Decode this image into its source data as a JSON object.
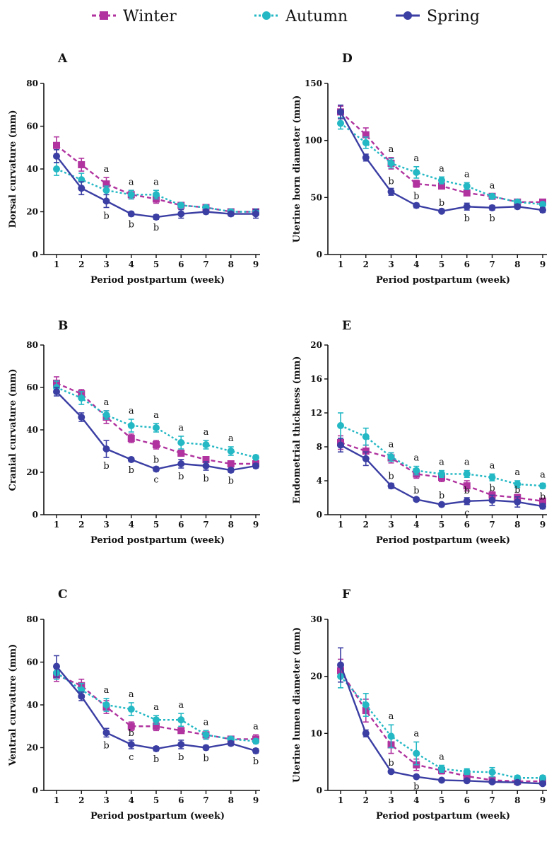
{
  "legend": [
    {
      "name": "Winter",
      "color": "#b0339f",
      "dash": "6,4",
      "marker": "square"
    },
    {
      "name": "Autumn",
      "color": "#23b8c4",
      "dash": "3,3",
      "marker": "circle"
    },
    {
      "name": "Spring",
      "color": "#3b3ea3",
      "dash": "",
      "marker": "circle"
    }
  ],
  "chart_data": [
    {
      "type": "line",
      "panel": "A",
      "xlabel": "Period postpartum (week)",
      "ylabel": "Dorsal curvature (mm)",
      "ylim": [
        0,
        80
      ],
      "yticks": [
        0,
        20,
        40,
        60,
        80
      ],
      "x": [
        1,
        2,
        3,
        4,
        5,
        6,
        7,
        8,
        9
      ],
      "series": [
        {
          "name": "Winter",
          "values": [
            51,
            42,
            33,
            28,
            26,
            23,
            22,
            20,
            20
          ],
          "errors": [
            4,
            3,
            3,
            2,
            2,
            1,
            1,
            1,
            1
          ]
        },
        {
          "name": "Autumn",
          "values": [
            40,
            35,
            30,
            28,
            28,
            23,
            22,
            20,
            20
          ],
          "errors": [
            3,
            3,
            2,
            2,
            2,
            1,
            1,
            1,
            1
          ]
        },
        {
          "name": "Spring",
          "values": [
            46,
            31,
            25,
            19,
            17.5,
            19,
            20,
            19,
            19
          ],
          "errors": [
            3,
            3,
            3,
            1,
            1,
            2,
            1,
            1,
            2
          ]
        }
      ],
      "annotations": [
        {
          "x": 3,
          "text": "a",
          "pos": "above"
        },
        {
          "x": 4,
          "text": "a",
          "pos": "above"
        },
        {
          "x": 5,
          "text": "a",
          "pos": "above"
        },
        {
          "x": 3,
          "text": "b",
          "pos": "below"
        },
        {
          "x": 4,
          "text": "b",
          "pos": "below"
        },
        {
          "x": 5,
          "text": "b",
          "pos": "below"
        }
      ]
    },
    {
      "type": "line",
      "panel": "B",
      "xlabel": "Period postpartum (week)",
      "ylabel": "Cranial curvature (mm)",
      "ylim": [
        0,
        80
      ],
      "yticks": [
        0,
        20,
        40,
        60,
        80
      ],
      "x": [
        1,
        2,
        3,
        4,
        5,
        6,
        7,
        8,
        9
      ],
      "series": [
        {
          "name": "Winter",
          "values": [
            62,
            57,
            46,
            36,
            33,
            29,
            26,
            24,
            24
          ],
          "errors": [
            3,
            2,
            3,
            2,
            2,
            1,
            1,
            1,
            1
          ]
        },
        {
          "name": "Autumn",
          "values": [
            60,
            55,
            47,
            42,
            41,
            34,
            33,
            30,
            27
          ],
          "errors": [
            3,
            3,
            2,
            3,
            2,
            3,
            2,
            2,
            1
          ]
        },
        {
          "name": "Spring",
          "values": [
            58,
            46,
            31,
            26,
            21.5,
            24,
            23,
            21,
            23
          ],
          "errors": [
            2,
            2,
            4,
            1,
            1,
            2,
            2,
            1,
            1
          ]
        }
      ],
      "annotations": [
        {
          "x": 3,
          "text": "a",
          "pos": "above"
        },
        {
          "x": 4,
          "text": "a",
          "pos": "above"
        },
        {
          "x": 5,
          "text": "a",
          "pos": "above"
        },
        {
          "x": 6,
          "text": "a",
          "pos": "above"
        },
        {
          "x": 7,
          "text": "a",
          "pos": "above"
        },
        {
          "x": 8,
          "text": "a",
          "pos": "above"
        },
        {
          "x": 3,
          "text": "b",
          "pos": "below"
        },
        {
          "x": 4,
          "text": "b",
          "pos": "below"
        },
        {
          "x": 5,
          "text": "b",
          "pos": "mid"
        },
        {
          "x": 5,
          "text": "c",
          "pos": "below"
        },
        {
          "x": 6,
          "text": "b",
          "pos": "below"
        },
        {
          "x": 7,
          "text": "b",
          "pos": "below"
        },
        {
          "x": 8,
          "text": "b",
          "pos": "below"
        }
      ]
    },
    {
      "type": "line",
      "panel": "C",
      "xlabel": "Period postpartum (week)",
      "ylabel": "Ventral curvature (mm)",
      "ylim": [
        0,
        80
      ],
      "yticks": [
        0,
        20,
        40,
        60,
        80
      ],
      "x": [
        1,
        2,
        3,
        4,
        5,
        6,
        7,
        8,
        9
      ],
      "series": [
        {
          "name": "Winter",
          "values": [
            54,
            49,
            39,
            30,
            30,
            28,
            26,
            24,
            24
          ],
          "errors": [
            3,
            3,
            3,
            2,
            2,
            1,
            2,
            1,
            2
          ]
        },
        {
          "name": "Autumn",
          "values": [
            55,
            47,
            40,
            38,
            33,
            33,
            26,
            24,
            23
          ],
          "errors": [
            3,
            3,
            3,
            3,
            2,
            3,
            2,
            1,
            1
          ]
        },
        {
          "name": "Spring",
          "values": [
            58,
            44,
            27,
            21.5,
            19.5,
            21.5,
            20,
            22,
            18.5
          ],
          "errors": [
            5,
            2,
            2,
            2,
            1,
            2,
            1,
            1,
            1
          ]
        }
      ],
      "annotations": [
        {
          "x": 3,
          "text": "a",
          "pos": "above"
        },
        {
          "x": 4,
          "text": "a",
          "pos": "above"
        },
        {
          "x": 5,
          "text": "a",
          "pos": "above"
        },
        {
          "x": 6,
          "text": "a",
          "pos": "above"
        },
        {
          "x": 7,
          "text": "a",
          "pos": "above"
        },
        {
          "x": 9,
          "text": "a",
          "pos": "above"
        },
        {
          "x": 3,
          "text": "b",
          "pos": "below"
        },
        {
          "x": 4,
          "text": "b",
          "pos": "mid"
        },
        {
          "x": 4,
          "text": "c",
          "pos": "below"
        },
        {
          "x": 5,
          "text": "b",
          "pos": "below"
        },
        {
          "x": 6,
          "text": "b",
          "pos": "below"
        },
        {
          "x": 7,
          "text": "b",
          "pos": "below"
        },
        {
          "x": 9,
          "text": "b",
          "pos": "below"
        }
      ]
    },
    {
      "type": "line",
      "panel": "D",
      "xlabel": "Period postpartum (week)",
      "ylabel": "Uterine horn diameter (mm)",
      "ylim": [
        0,
        150
      ],
      "yticks": [
        0,
        50,
        100,
        150
      ],
      "x": [
        1,
        2,
        3,
        4,
        5,
        6,
        7,
        8,
        9
      ],
      "series": [
        {
          "name": "Winter",
          "values": [
            125,
            105,
            80,
            62,
            60,
            54,
            51,
            46,
            46
          ],
          "errors": [
            5,
            6,
            5,
            3,
            2,
            2,
            2,
            2,
            2
          ]
        },
        {
          "name": "Autumn",
          "values": [
            115,
            98,
            80,
            72,
            65,
            60,
            51,
            46,
            44
          ],
          "errors": [
            5,
            5,
            4,
            5,
            3,
            3,
            2,
            2,
            2
          ]
        },
        {
          "name": "Spring",
          "values": [
            125,
            85,
            55,
            43,
            38,
            42,
            41,
            42,
            39
          ],
          "errors": [
            6,
            3,
            3,
            2,
            1,
            3,
            2,
            2,
            2
          ]
        }
      ],
      "annotations": [
        {
          "x": 3,
          "text": "a",
          "pos": "above"
        },
        {
          "x": 4,
          "text": "a",
          "pos": "above"
        },
        {
          "x": 5,
          "text": "a",
          "pos": "above"
        },
        {
          "x": 6,
          "text": "a",
          "pos": "above"
        },
        {
          "x": 7,
          "text": "a",
          "pos": "above"
        },
        {
          "x": 3,
          "text": "b",
          "pos": "mid"
        },
        {
          "x": 4,
          "text": "b",
          "pos": "mid"
        },
        {
          "x": 5,
          "text": "b",
          "pos": "mid"
        },
        {
          "x": 6,
          "text": "b",
          "pos": "below"
        },
        {
          "x": 7,
          "text": "b",
          "pos": "below"
        }
      ]
    },
    {
      "type": "line",
      "panel": "E",
      "xlabel": "Period postpartum (week)",
      "ylabel": "Endometrial thickness (mm)",
      "ylim": [
        0,
        20
      ],
      "yticks": [
        0,
        4,
        8,
        12,
        16,
        20
      ],
      "x": [
        1,
        2,
        3,
        4,
        5,
        6,
        7,
        8,
        9
      ],
      "series": [
        {
          "name": "Winter",
          "values": [
            8.5,
            7.5,
            6.7,
            4.8,
            4.4,
            3.4,
            2.3,
            2.0,
            1.6
          ],
          "errors": [
            0.8,
            0.7,
            0.6,
            0.5,
            0.5,
            0.6,
            0.4,
            0.4,
            0.3
          ]
        },
        {
          "name": "Autumn",
          "values": [
            10.5,
            9.2,
            6.8,
            5.2,
            4.8,
            4.8,
            4.4,
            3.6,
            3.4
          ],
          "errors": [
            1.5,
            1.0,
            0.5,
            0.5,
            0.4,
            0.4,
            0.4,
            0.4,
            0.3
          ]
        },
        {
          "name": "Spring",
          "values": [
            8.2,
            6.6,
            3.4,
            1.8,
            1.2,
            1.6,
            1.7,
            1.5,
            1.0
          ],
          "errors": [
            0.8,
            0.8,
            0.3,
            0.2,
            0.2,
            0.4,
            0.6,
            0.6,
            0.3
          ]
        }
      ],
      "annotations": [
        {
          "x": 3,
          "text": "a",
          "pos": "above"
        },
        {
          "x": 4,
          "text": "a",
          "pos": "above"
        },
        {
          "x": 5,
          "text": "a",
          "pos": "above"
        },
        {
          "x": 6,
          "text": "a",
          "pos": "above"
        },
        {
          "x": 7,
          "text": "a",
          "pos": "above"
        },
        {
          "x": 8,
          "text": "a",
          "pos": "above"
        },
        {
          "x": 9,
          "text": "a",
          "pos": "above"
        },
        {
          "x": 3,
          "text": "b",
          "pos": "mid"
        },
        {
          "x": 4,
          "text": "b",
          "pos": "mid"
        },
        {
          "x": 5,
          "text": "b",
          "pos": "mid"
        },
        {
          "x": 6,
          "text": "b",
          "pos": "mid"
        },
        {
          "x": 6,
          "text": "c",
          "pos": "below"
        },
        {
          "x": 7,
          "text": "b",
          "pos": "mid"
        },
        {
          "x": 8,
          "text": "b",
          "pos": "mid"
        },
        {
          "x": 9,
          "text": "b",
          "pos": "mid"
        }
      ]
    },
    {
      "type": "line",
      "panel": "F",
      "xlabel": "Period postpartum (week)",
      "ylabel": "Uterine lumen diameter (mm)",
      "ylim": [
        0,
        30
      ],
      "yticks": [
        0,
        10,
        20,
        30
      ],
      "x": [
        1,
        2,
        3,
        4,
        5,
        6,
        7,
        8,
        9
      ],
      "series": [
        {
          "name": "Winter",
          "values": [
            21,
            14,
            8,
            4.5,
            3.5,
            2.5,
            1.8,
            1.6,
            1.6
          ],
          "errors": [
            2,
            2,
            1.5,
            1,
            0.6,
            0.4,
            0.4,
            0.3,
            0.3
          ]
        },
        {
          "name": "Autumn",
          "values": [
            20,
            15,
            9.5,
            6.5,
            3.8,
            3.3,
            3.2,
            2.2,
            2.2
          ],
          "errors": [
            2,
            2,
            2,
            2,
            0.6,
            0.5,
            0.8,
            0.4,
            0.4
          ]
        },
        {
          "name": "Spring",
          "values": [
            22,
            10,
            3.3,
            2.4,
            1.8,
            1.7,
            1.5,
            1.4,
            1.2
          ],
          "errors": [
            3,
            0.6,
            0.3,
            0.2,
            0.2,
            0.2,
            0.2,
            0.2,
            0.2
          ]
        }
      ],
      "annotations": [
        {
          "x": 3,
          "text": "a",
          "pos": "above"
        },
        {
          "x": 4,
          "text": "a",
          "pos": "above"
        },
        {
          "x": 5,
          "text": "a",
          "pos": "above"
        },
        {
          "x": 3,
          "text": "b",
          "pos": "mid"
        },
        {
          "x": 4,
          "text": "b",
          "pos": "below"
        }
      ]
    }
  ]
}
